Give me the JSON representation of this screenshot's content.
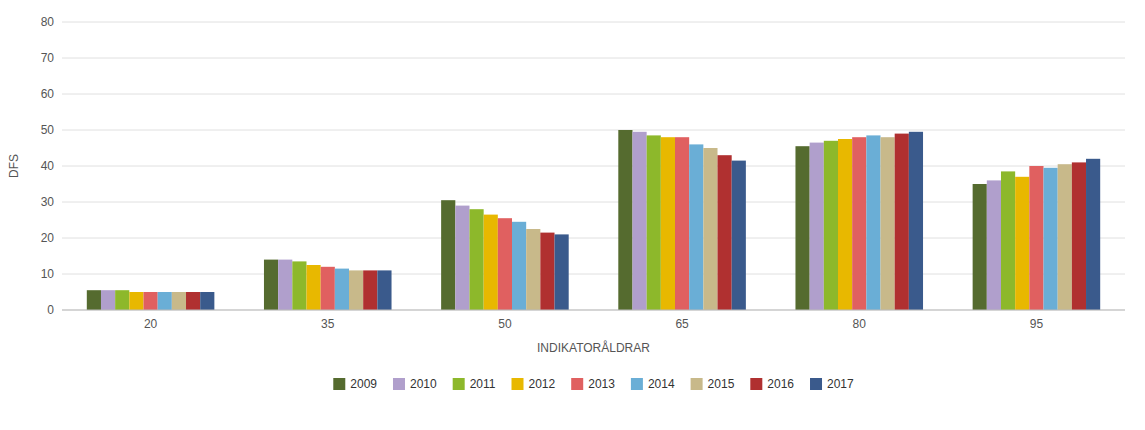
{
  "chart_data": {
    "type": "bar",
    "x_label": "INDIKATORÅLDRAR",
    "y_label": "DFS",
    "categories": [
      "20",
      "35",
      "50",
      "65",
      "80",
      "95"
    ],
    "series": [
      {
        "name": "2009",
        "color": "#556b2f",
        "values": [
          5.5,
          14.0,
          30.5,
          50.0,
          45.5,
          35.0
        ]
      },
      {
        "name": "2010",
        "color": "#b09fcc",
        "values": [
          5.5,
          14.0,
          29.0,
          49.5,
          46.5,
          36.0
        ]
      },
      {
        "name": "2011",
        "color": "#8db82b",
        "values": [
          5.5,
          13.5,
          28.0,
          48.5,
          47.0,
          38.5
        ]
      },
      {
        "name": "2012",
        "color": "#e8b800",
        "values": [
          5.0,
          12.5,
          26.5,
          48.0,
          47.5,
          37.0
        ]
      },
      {
        "name": "2013",
        "color": "#e06060",
        "values": [
          5.0,
          12.0,
          25.5,
          48.0,
          48.0,
          40.0
        ]
      },
      {
        "name": "2014",
        "color": "#6aaed6",
        "values": [
          5.0,
          11.5,
          24.5,
          46.0,
          48.5,
          39.5
        ]
      },
      {
        "name": "2015",
        "color": "#c8b98a",
        "values": [
          5.0,
          11.0,
          22.5,
          45.0,
          48.0,
          40.5
        ]
      },
      {
        "name": "2016",
        "color": "#b03030",
        "values": [
          5.0,
          11.0,
          21.5,
          43.0,
          49.0,
          41.0
        ]
      },
      {
        "name": "2017",
        "color": "#3a5a8c",
        "values": [
          5.0,
          11.0,
          21.0,
          41.5,
          49.5,
          42.0
        ]
      }
    ],
    "ylim": [
      0,
      80
    ],
    "yticks": [
      0,
      10,
      20,
      30,
      40,
      50,
      60,
      70,
      80
    ],
    "grid": true,
    "legend": "bottom"
  }
}
